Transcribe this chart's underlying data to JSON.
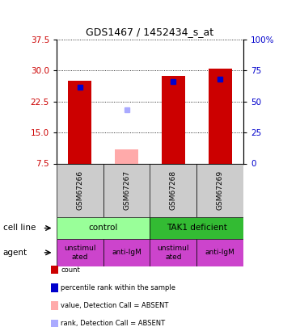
{
  "title": "GDS1467 / 1452434_s_at",
  "samples": [
    "GSM67266",
    "GSM67267",
    "GSM67268",
    "GSM67269"
  ],
  "ylim_left": [
    7.5,
    37.5
  ],
  "ylim_right": [
    0,
    100
  ],
  "yticks_left": [
    7.5,
    15.0,
    22.5,
    30.0,
    37.5
  ],
  "yticks_right": [
    0,
    25,
    50,
    75,
    100
  ],
  "bar_values": [
    27.5,
    null,
    28.7,
    30.5
  ],
  "bar_colors": [
    "#cc0000",
    null,
    "#cc0000",
    "#cc0000"
  ],
  "absent_bar_values": [
    null,
    11.0,
    null,
    null
  ],
  "absent_bar_color": "#ffaaaa",
  "percentile_values": [
    26.0,
    null,
    27.2,
    27.8
  ],
  "percentile_color": "#0000cc",
  "absent_percentile_values": [
    null,
    20.5,
    null,
    null
  ],
  "absent_percentile_color": "#aaaaff",
  "bar_width": 0.5,
  "left_label_color": "#cc0000",
  "right_label_color": "#0000cc",
  "background_color": "#ffffff",
  "cell_line_bg_control": "#99ff99",
  "cell_line_bg_tak1": "#33bb33",
  "agent_bg": "#cc44cc",
  "sample_bg": "#cccccc",
  "agent_texts": [
    "unstimul\nated",
    "anti-IgM",
    "unstimul\nated",
    "anti-IgM"
  ],
  "legend_items": [
    [
      "#cc0000",
      "count"
    ],
    [
      "#0000cc",
      "percentile rank within the sample"
    ],
    [
      "#ffaaaa",
      "value, Detection Call = ABSENT"
    ],
    [
      "#aaaaff",
      "rank, Detection Call = ABSENT"
    ]
  ]
}
